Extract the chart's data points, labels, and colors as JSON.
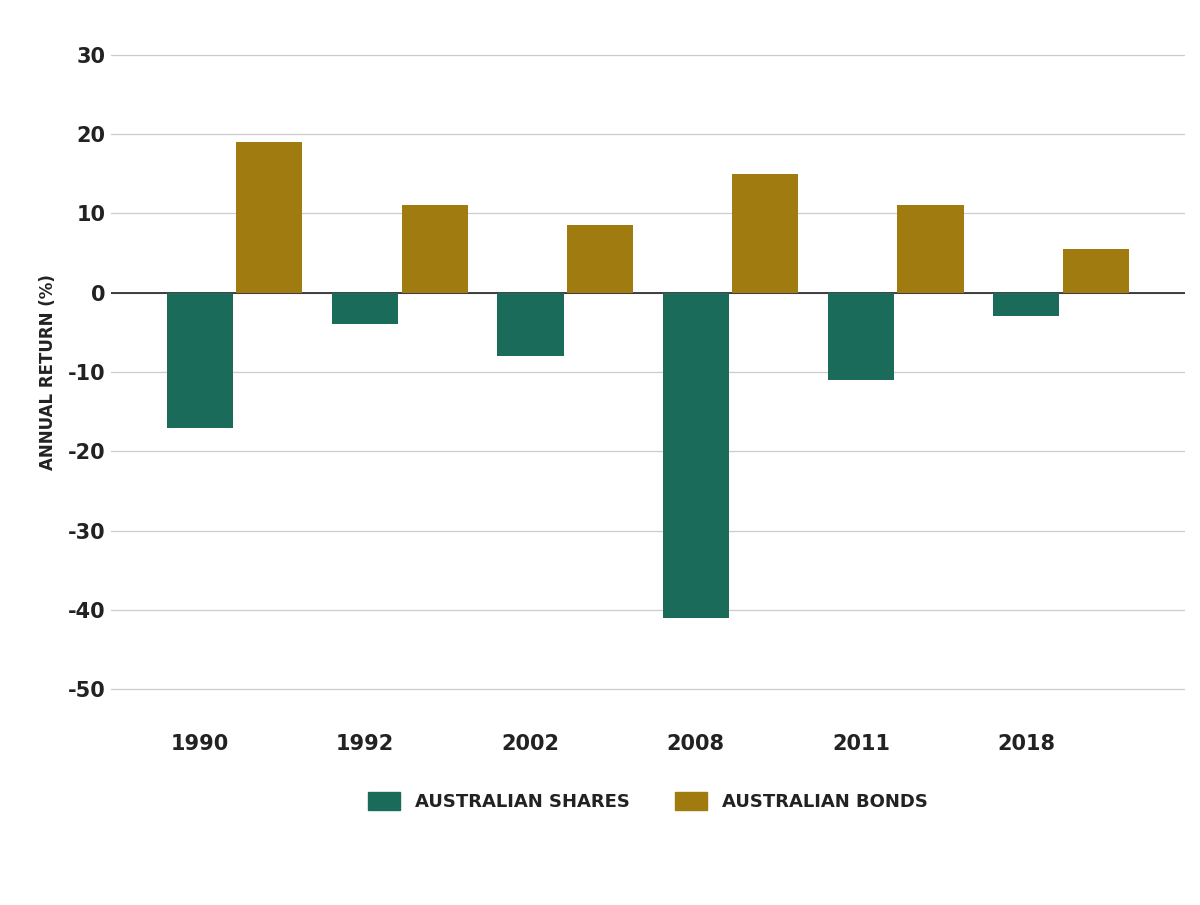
{
  "years": [
    "1990",
    "1992",
    "2002",
    "2008",
    "2011",
    "2018"
  ],
  "shares": [
    -17,
    -4,
    -8,
    -41,
    -11,
    -3
  ],
  "bonds": [
    19,
    11,
    8.5,
    15,
    11,
    5.5
  ],
  "shares_color": "#1a6b5a",
  "bonds_color": "#a07c10",
  "ylabel": "ANNUAL RETURN (%)",
  "shares_label": "AUSTRALIAN SHARES",
  "bonds_label": "AUSTRALIAN BONDS",
  "ylim": [
    -55,
    35
  ],
  "yticks": [
    30,
    20,
    10,
    0,
    -10,
    -20,
    -30,
    -40,
    -50
  ],
  "background_color": "#ffffff",
  "grid_color": "#cccccc",
  "bar_width": 0.4,
  "bar_gap": 0.02
}
